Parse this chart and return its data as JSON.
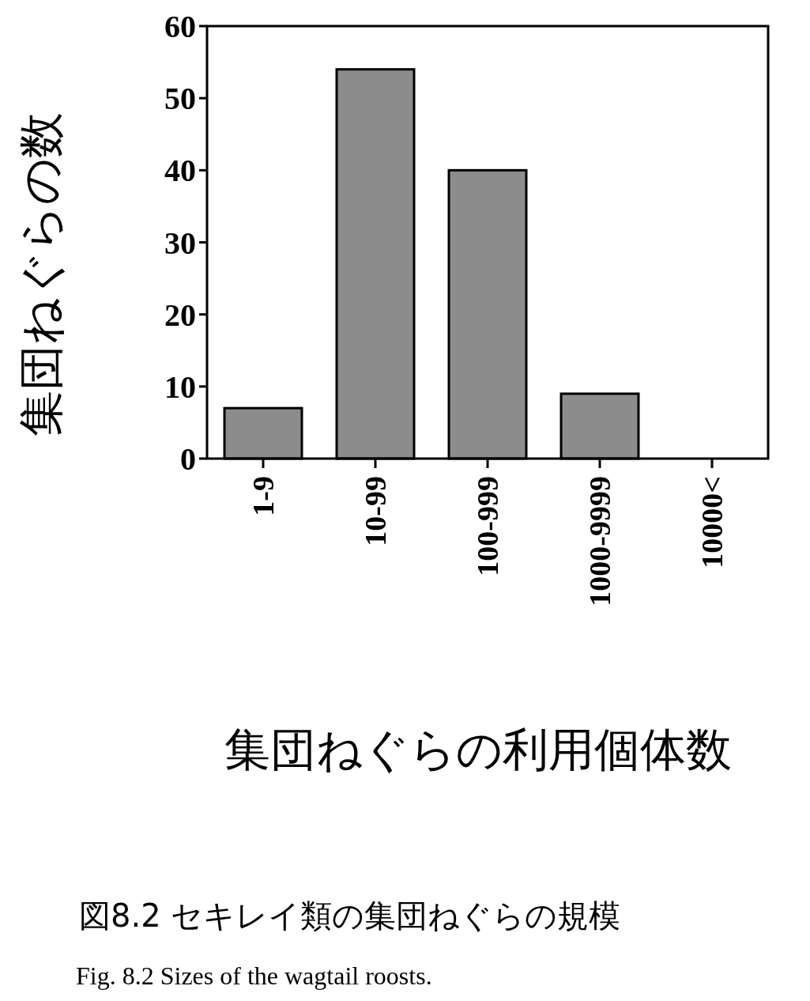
{
  "chart_data": {
    "type": "bar",
    "categories": [
      "1-9",
      "10-99",
      "100-999",
      "1000-9999",
      "10000<"
    ],
    "values": [
      7,
      54,
      40,
      9,
      0
    ],
    "color": "#8c8c8c",
    "ylim": [
      0,
      60
    ],
    "yticks": [
      0,
      10,
      20,
      30,
      40,
      50,
      60
    ],
    "xlabel": "集団ねぐらの利用個体数",
    "ylabel": "集団ねぐらの数",
    "annotations": [
      "図8.2 セキレイ類の集団ねぐらの規模",
      "Fig. 8.2 Sizes of the wagtail roosts."
    ]
  }
}
